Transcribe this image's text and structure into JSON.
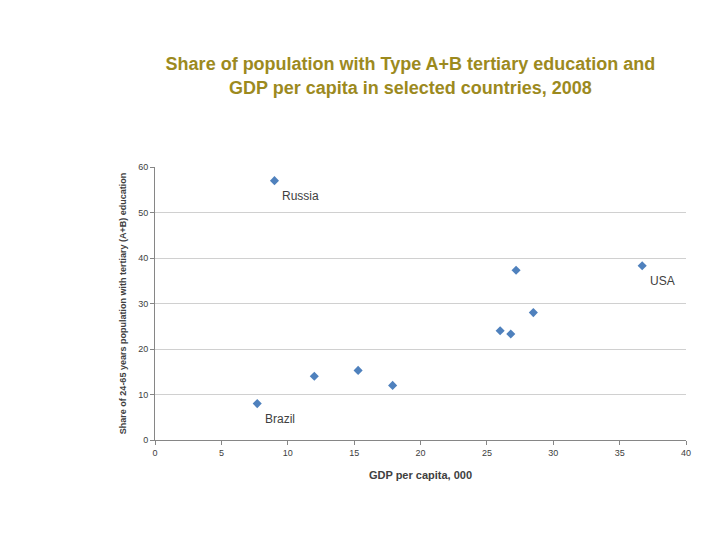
{
  "chart_data": {
    "type": "scatter",
    "title": "Share of population with Type A+B tertiary education and\nGDP per capita in selected countries, 2008",
    "x_label": "GDP per capita, 000",
    "y_label": "Share of 24-65 years population with tertiary (A+B) education",
    "x": [
      7.7,
      9,
      12,
      15.3,
      17.9,
      26,
      26.8,
      27.2,
      28.5,
      36.7
    ],
    "values": [
      8,
      57,
      14,
      15.3,
      12,
      24,
      23.3,
      37.3,
      28,
      38.3
    ],
    "color": "#4f81bd",
    "marker": "diamond",
    "xlim": [
      0,
      40
    ],
    "xticks": [
      0,
      5,
      10,
      15,
      20,
      25,
      30,
      35,
      40
    ],
    "ylim": [
      0,
      60
    ],
    "yticks": [
      0,
      10,
      20,
      30,
      40,
      50,
      60
    ],
    "grid": true,
    "annotations": [
      {
        "text": "Russia",
        "x": 9,
        "y": 57
      },
      {
        "text": "Brazil",
        "x": 7.7,
        "y": 8
      },
      {
        "text": "USA",
        "x": 36.7,
        "y": 38.3
      }
    ]
  }
}
